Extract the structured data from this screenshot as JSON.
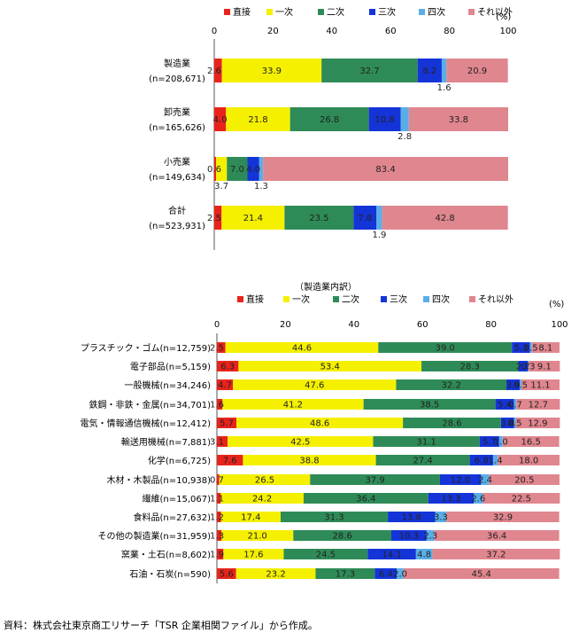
{
  "series_names": [
    "直接",
    "一次",
    "二次",
    "三次",
    "四次",
    "それ以外"
  ],
  "colors": {
    "直接": "#e8231c",
    "一次": "#f5f000",
    "二次": "#2e8b57",
    "三次": "#1434d8",
    "四次": "#5aaee8",
    "それ以外": "#e0868f"
  },
  "source_note": "資料：株式会社東京商工リサーチ「TSR 企業相関ファイル」から作成。",
  "chart_data": [
    {
      "type": "bar",
      "orientation": "horizontal",
      "stacked": true,
      "title": "",
      "percent_label": "(%)",
      "xlim": [
        0,
        100
      ],
      "ticks": [
        "0",
        "20",
        "40",
        "60",
        "80",
        "100"
      ],
      "legend_placement": "top",
      "categories": [
        [
          "製造業",
          "(n=208,671)"
        ],
        [
          "卸売業",
          "(n=165,626)"
        ],
        [
          "小売業",
          "(n=149,634)"
        ],
        [
          "合計",
          "(n=523,931)"
        ]
      ],
      "series": [
        {
          "name": "直接",
          "values": [
            2.6,
            4.0,
            0.6,
            2.5
          ]
        },
        {
          "name": "一次",
          "values": [
            33.9,
            21.8,
            3.7,
            21.4
          ]
        },
        {
          "name": "二次",
          "values": [
            32.7,
            26.8,
            7.0,
            23.5
          ]
        },
        {
          "name": "三次",
          "values": [
            8.2,
            10.8,
            4.0,
            7.8
          ]
        },
        {
          "name": "四次",
          "values": [
            1.6,
            2.8,
            1.3,
            1.9
          ]
        },
        {
          "name": "それ以外",
          "values": [
            20.9,
            33.8,
            83.4,
            42.8
          ]
        }
      ],
      "data_labels": [
        [
          "2.6",
          "33.9",
          "32.7",
          "8.2",
          "1.6",
          "20.9"
        ],
        [
          "4.0",
          "21.8",
          "26.8",
          "10.8",
          "2.8",
          "33.8"
        ],
        [
          "0.6",
          "3.7",
          "7.0",
          "4.0",
          "1.3",
          "83.4"
        ],
        [
          "2.5",
          "21.4",
          "23.5",
          "7.8",
          "1.9",
          "42.8"
        ]
      ]
    },
    {
      "type": "bar",
      "orientation": "horizontal",
      "stacked": true,
      "title": "（製造業内訳）",
      "percent_label": "(%)",
      "xlim": [
        0,
        100
      ],
      "ticks": [
        "0",
        "20",
        "40",
        "60",
        "80",
        "100"
      ],
      "legend_placement": "top",
      "categories": [
        "プラスチック・ゴム(n=12,759)",
        "電子部品(n=5,159)",
        "一般機械(n=34,246)",
        "鉄鋼・非鉄・金属(n=34,701)",
        "電気・情報通信機械(n=12,412)",
        "輸送用機械(n=7,881)",
        "化学(n=6,725)",
        "木材・木製品(n=10,938)",
        "繊維(n=15,067)",
        "食料品(n=27,632)",
        "その他の製造業(n=31,959)",
        "窯業・土石(n=8,602)",
        "石油・石炭(n=590)"
      ],
      "series": [
        {
          "name": "直接",
          "values": [
            2.5,
            6.3,
            4.7,
            1.6,
            5.7,
            3.1,
            7.6,
            0.7,
            1.1,
            1.2,
            1.3,
            1.9,
            5.6
          ]
        },
        {
          "name": "一次",
          "values": [
            44.6,
            53.4,
            47.6,
            41.2,
            48.6,
            42.5,
            38.8,
            26.5,
            24.2,
            17.4,
            21.0,
            17.6,
            23.2
          ]
        },
        {
          "name": "二次",
          "values": [
            39.0,
            28.3,
            32.2,
            38.5,
            28.6,
            31.1,
            27.4,
            37.9,
            36.4,
            31.3,
            28.6,
            24.5,
            17.3
          ]
        },
        {
          "name": "三次",
          "values": [
            5.3,
            2.7,
            3.9,
            5.4,
            3.8,
            5.7,
            6.8,
            12.0,
            13.3,
            13.8,
            10.3,
            14.1,
            6.4
          ]
        },
        {
          "name": "四次",
          "values": [
            0.5,
            0.3,
            0.5,
            0.7,
            0.5,
            1.0,
            1.4,
            2.4,
            2.6,
            3.3,
            2.3,
            4.8,
            2.0
          ]
        },
        {
          "name": "それ以外",
          "values": [
            8.1,
            9.1,
            11.1,
            12.7,
            12.9,
            16.5,
            18.0,
            20.5,
            22.5,
            32.9,
            36.4,
            37.2,
            45.4
          ]
        }
      ],
      "data_labels": [
        [
          "2.5",
          "44.6",
          "39.0",
          "5.3",
          "0.5",
          "8.1"
        ],
        [
          "6.3",
          "53.4",
          "28.3",
          "2.7",
          "0.3",
          "9.1"
        ],
        [
          "4.7",
          "47.6",
          "32.2",
          "3.9",
          "0.5",
          "11.1"
        ],
        [
          "1.6",
          "41.2",
          "38.5",
          "5.4",
          "0.7",
          "12.7"
        ],
        [
          "5.7",
          "48.6",
          "28.6",
          "3.8",
          "0.5",
          "12.9"
        ],
        [
          "3.1",
          "42.5",
          "31.1",
          "5.7",
          "1.0",
          "16.5"
        ],
        [
          "7.6",
          "38.8",
          "27.4",
          "6.8",
          "1.4",
          "18.0"
        ],
        [
          "0.7",
          "26.5",
          "37.9",
          "12.0",
          "2.4",
          "20.5"
        ],
        [
          "1.1",
          "24.2",
          "36.4",
          "13.3",
          "2.6",
          "22.5"
        ],
        [
          "1.2",
          "17.4",
          "31.3",
          "13.8",
          "3.3",
          "32.9"
        ],
        [
          "1.3",
          "21.0",
          "28.6",
          "10.3",
          "2.3",
          "36.4"
        ],
        [
          "1.9",
          "17.6",
          "24.5",
          "14.1",
          "4.8",
          "37.2"
        ],
        [
          "5.6",
          "23.2",
          "17.3",
          "6.4",
          "2.0",
          "45.4"
        ]
      ]
    }
  ]
}
